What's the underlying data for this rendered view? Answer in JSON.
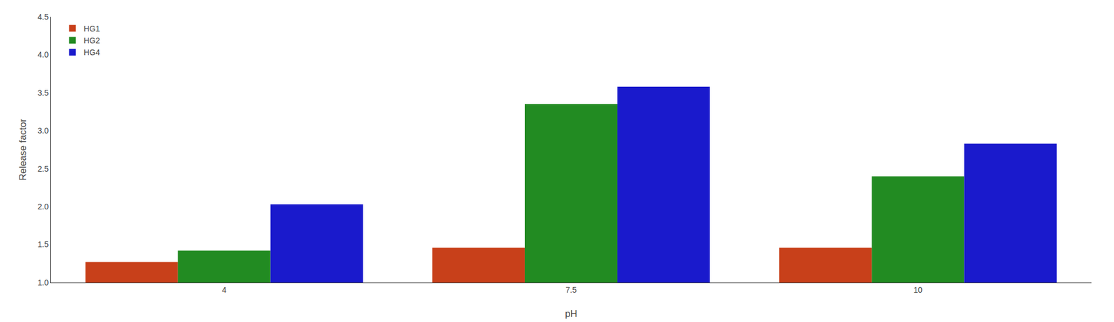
{
  "chart_data": {
    "type": "bar",
    "categories": [
      "4",
      "7.5",
      "10"
    ],
    "series": [
      {
        "name": "HG1",
        "color": "#C8401A",
        "values": [
          1.27,
          1.46,
          1.46
        ]
      },
      {
        "name": "HG2",
        "color": "#228B22",
        "values": [
          1.42,
          3.35,
          2.4
        ]
      },
      {
        "name": "HG4",
        "color": "#1A1ACC",
        "values": [
          2.03,
          3.58,
          2.83
        ]
      }
    ],
    "xlabel": "pH",
    "ylabel": "Release factor",
    "ylim": [
      1.0,
      4.5
    ],
    "yticks": [
      {
        "value": 1.0,
        "label": "1.0"
      },
      1.5,
      {
        "value": 2.0,
        "label": "2.0"
      },
      2.5,
      {
        "value": 3.0,
        "label": "3.0"
      },
      3.5,
      {
        "value": 4.0,
        "label": "4.0"
      },
      4.5
    ],
    "grid": false,
    "legend": "upper left"
  }
}
